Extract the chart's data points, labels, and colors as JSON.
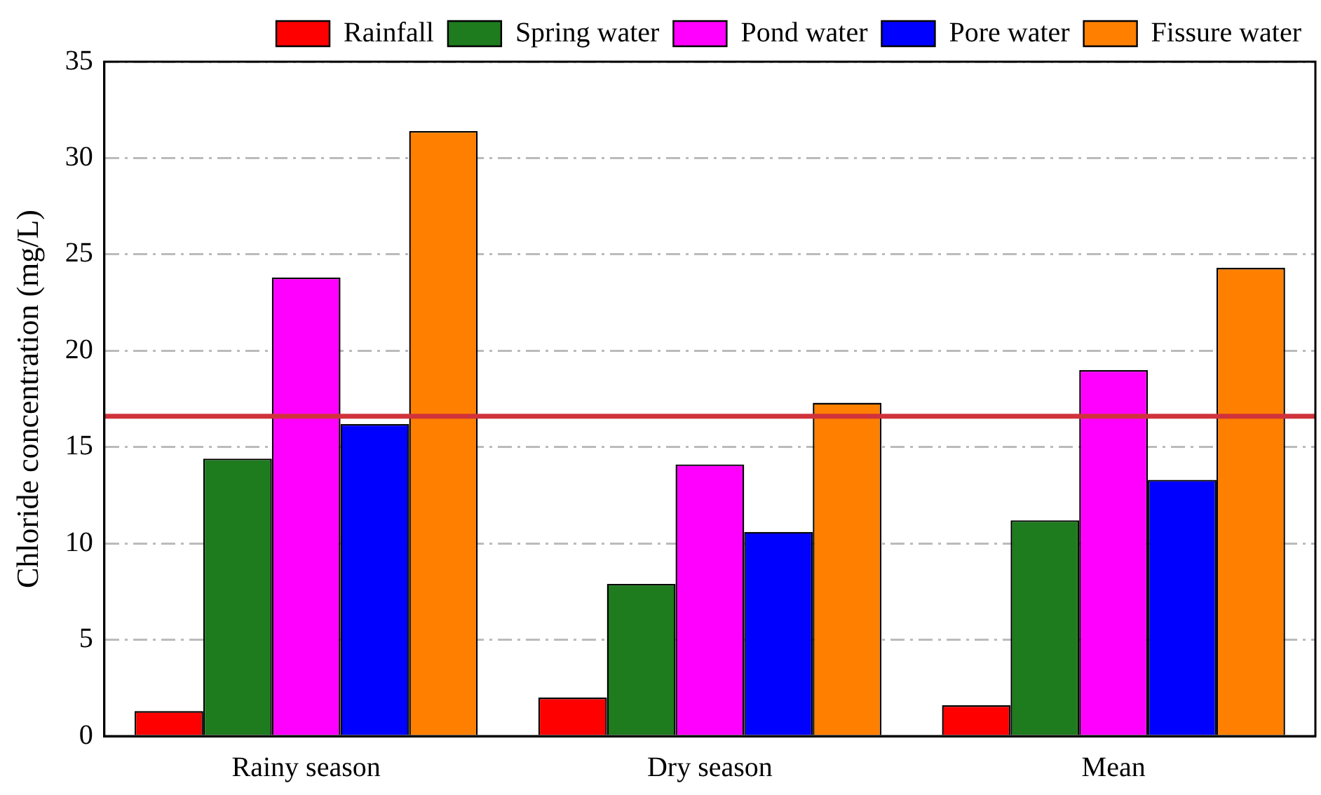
{
  "chart_data": {
    "type": "bar",
    "ylabel": "Chloride concentration (mg/L)",
    "categories": [
      "Rainy season",
      "Dry season",
      "Mean"
    ],
    "series": [
      {
        "name": "Rainfall",
        "color": "#ff0000",
        "values": [
          1.3,
          2.0,
          1.6
        ]
      },
      {
        "name": "Spring water",
        "color": "#1e7b1e",
        "values": [
          14.4,
          7.9,
          11.2
        ]
      },
      {
        "name": "Pond water",
        "color": "#ff00ff",
        "values": [
          23.8,
          14.1,
          19.0
        ]
      },
      {
        "name": "Pore water",
        "color": "#0000ff",
        "values": [
          16.2,
          10.6,
          13.3
        ]
      },
      {
        "name": "Fissure water",
        "color": "#ff7f00",
        "values": [
          31.4,
          17.3,
          24.3
        ]
      }
    ],
    "ylim": [
      0,
      35
    ],
    "yticks": [
      0,
      5,
      10,
      15,
      20,
      25,
      30,
      35
    ],
    "grid": "y",
    "legend": "top right",
    "ref_lines": [
      {
        "axis": "y",
        "value": 16.6,
        "color": "#d0333c"
      }
    ]
  }
}
